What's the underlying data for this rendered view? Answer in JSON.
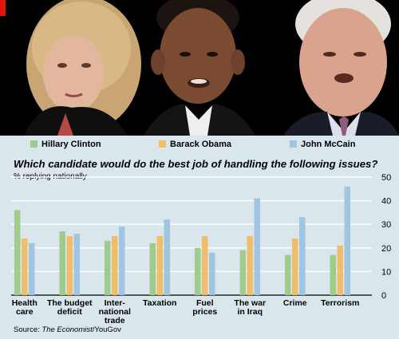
{
  "colors": {
    "clinton": "#9fcc8c",
    "obama": "#f2bd6b",
    "mccain": "#9fc5e0",
    "panel_background": "#d9e6ec",
    "photo_background": "#000000",
    "accent_red": "#e3120b"
  },
  "photos": [
    "Hillary Clinton portrait",
    "Barack Obama portrait",
    "John McCain portrait"
  ],
  "source_prefix": "Source: ",
  "source_publication": "The Economist",
  "source_suffix": "/YouGov",
  "chart_data": {
    "type": "bar",
    "title": "Which candidate would do the best job of handling the following issues?",
    "subtitle": "% replying nationally",
    "categories": [
      [
        "Health",
        "care"
      ],
      [
        "The budget",
        "deficit"
      ],
      [
        "Inter-",
        "national",
        "trade"
      ],
      [
        "Taxation"
      ],
      [
        "Fuel",
        "prices"
      ],
      [
        "The war",
        "in Iraq"
      ],
      [
        "Crime"
      ],
      [
        "Terrorism"
      ]
    ],
    "series": [
      {
        "name": "Hillary Clinton",
        "values": [
          36,
          27,
          23,
          22,
          20,
          19,
          17,
          17
        ]
      },
      {
        "name": "Barack Obama",
        "values": [
          24,
          25,
          25,
          25,
          25,
          25,
          24,
          21
        ]
      },
      {
        "name": "John McCain",
        "values": [
          22,
          26,
          29,
          32,
          18,
          41,
          33,
          46
        ]
      }
    ],
    "ylim": [
      0,
      50
    ],
    "yticks": [
      0,
      10,
      20,
      30,
      40,
      50
    ],
    "grid": true,
    "y_axis_side": "right",
    "legend_position": "top"
  }
}
